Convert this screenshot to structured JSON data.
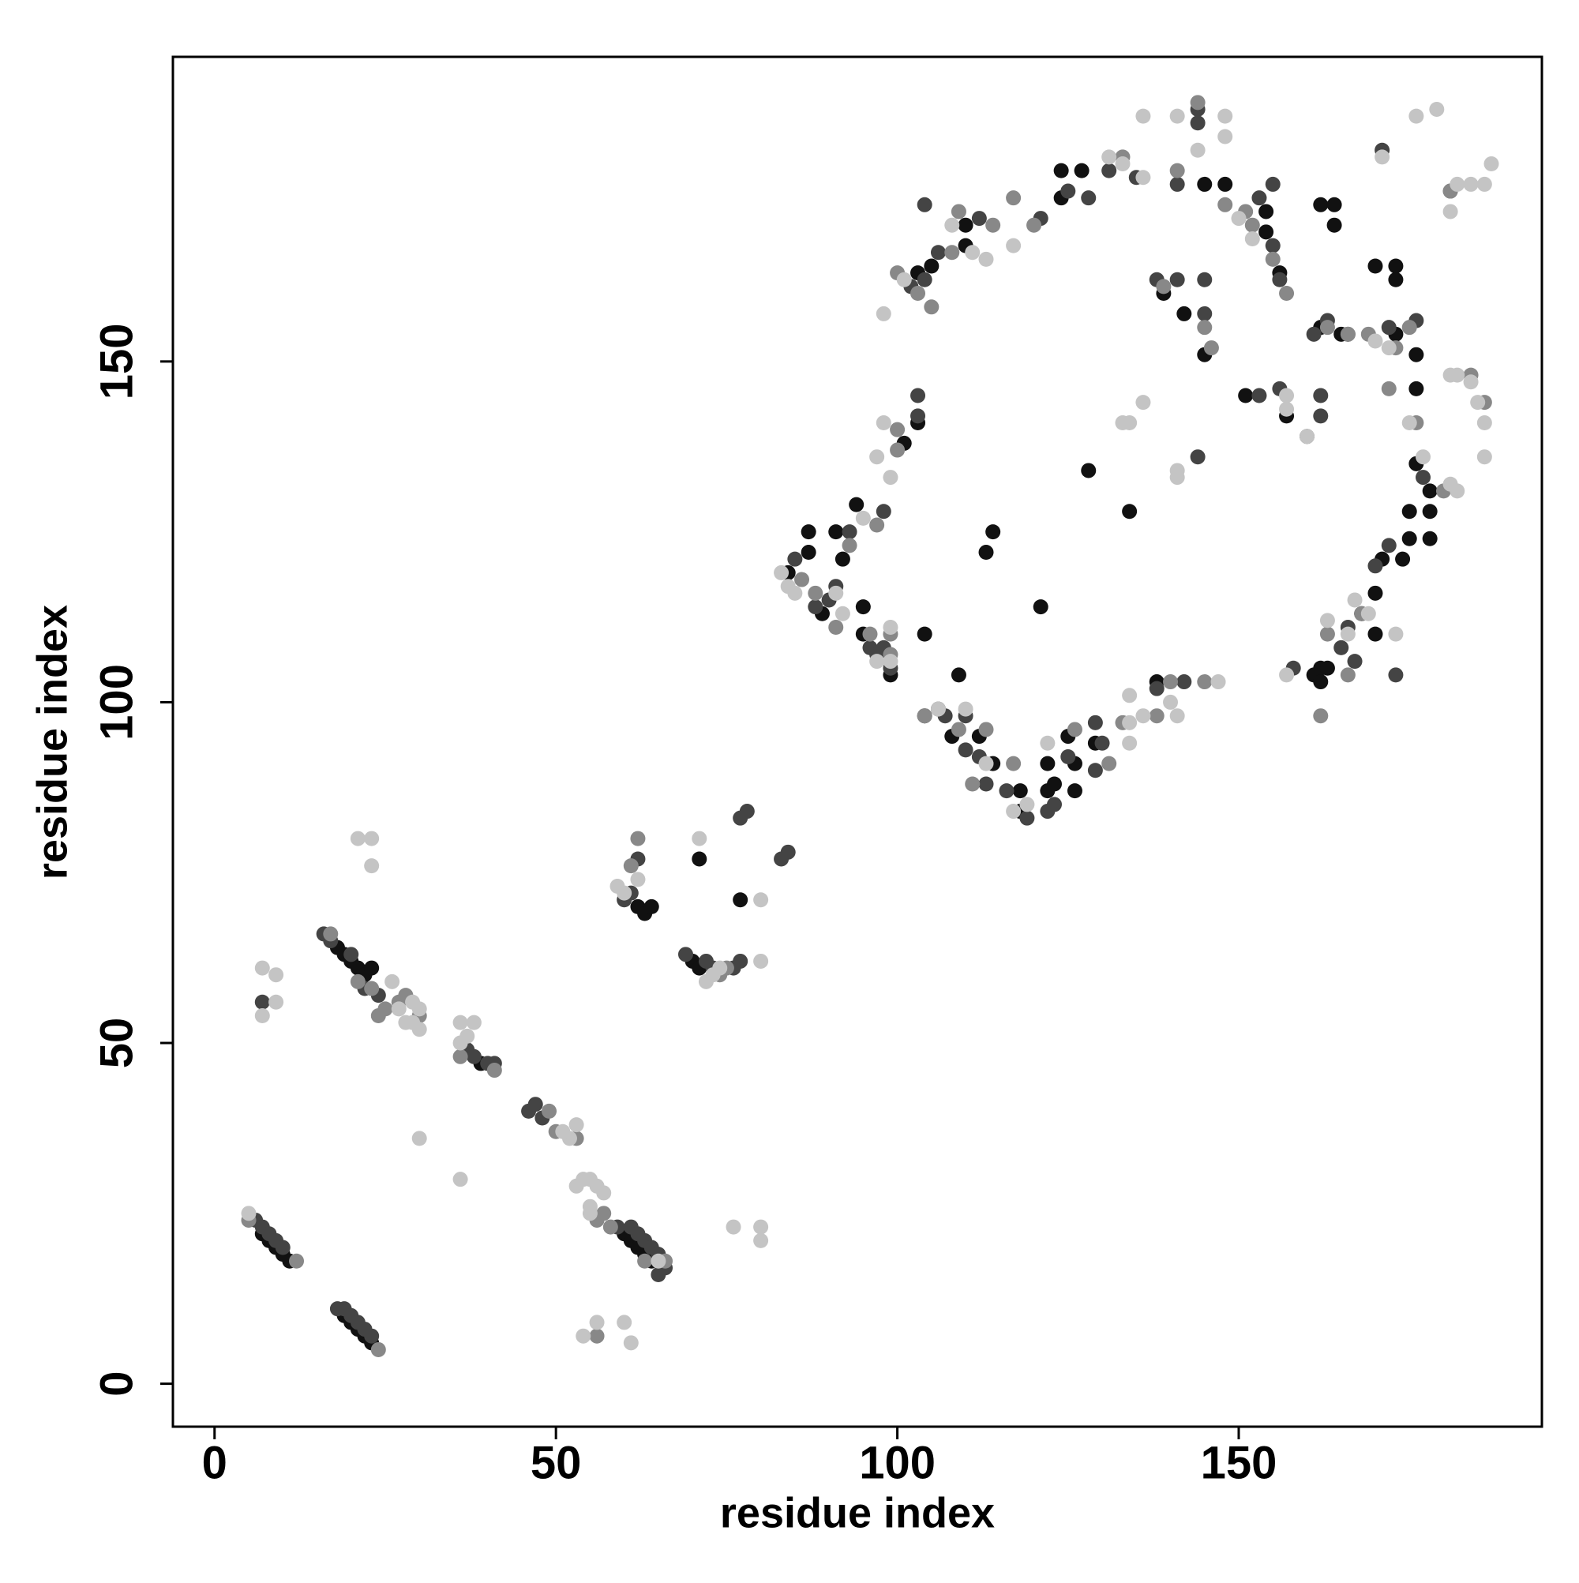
{
  "chart_data": {
    "type": "scatter",
    "x_label": "residue index",
    "y_label": "residue index",
    "xlim": [
      -6.1,
      194.4
    ],
    "ylim": [
      -6.3,
      194.7
    ],
    "xticks": [
      0,
      50,
      100,
      150
    ],
    "yticks": [
      0,
      50,
      100,
      150
    ],
    "grid": false,
    "series": [
      {
        "color": "#111111",
        "x": [
          7,
          8,
          9,
          10,
          11,
          19,
          20,
          21,
          22,
          23,
          18,
          19,
          20,
          21,
          22,
          23,
          60,
          61,
          62,
          63,
          64,
          39,
          62,
          63,
          64,
          71,
          77,
          70,
          71,
          84,
          87,
          87,
          92,
          91,
          94,
          89,
          95,
          95,
          99,
          104,
          109,
          104,
          108,
          112,
          114,
          118,
          118,
          122,
          122,
          123,
          125,
          126,
          126,
          129,
          128,
          134,
          121,
          113,
          114,
          103,
          105,
          110,
          110,
          124,
          124,
          127,
          145,
          148,
          154,
          154,
          156,
          162,
          164,
          164,
          170,
          173,
          173,
          139,
          142,
          145,
          151,
          157,
          162,
          165,
          173,
          176,
          176,
          176,
          178,
          178,
          178,
          175,
          175,
          171,
          174,
          170,
          168,
          170,
          162,
          161,
          163,
          162,
          138,
          101,
          103
        ],
        "y": [
          22,
          21,
          20,
          19,
          18,
          10,
          9,
          8,
          7,
          6,
          64,
          63,
          62,
          61,
          60,
          61,
          22,
          21,
          20,
          19,
          18,
          47,
          70,
          69,
          70,
          77,
          71,
          62,
          61,
          119,
          125,
          122,
          121,
          125,
          129,
          113,
          114,
          110,
          104,
          110,
          104,
          98,
          95,
          95,
          91,
          87,
          84,
          91,
          87,
          88,
          95,
          91,
          87,
          94,
          134,
          128,
          114,
          122,
          125,
          163,
          164,
          170,
          167,
          178,
          174,
          178,
          176,
          176,
          172,
          169,
          163,
          173,
          173,
          170,
          164,
          164,
          162,
          160,
          157,
          151,
          145,
          142,
          155,
          154,
          154,
          151,
          146,
          135,
          131,
          128,
          124,
          128,
          124,
          121,
          121,
          116,
          113,
          110,
          105,
          104,
          105,
          103,
          103,
          138,
          141
        ]
      },
      {
        "color": "#444444",
        "x": [
          6,
          7,
          8,
          9,
          10,
          18,
          19,
          20,
          21,
          22,
          23,
          16,
          17,
          20,
          22,
          24,
          7,
          37,
          38,
          40,
          41,
          46,
          47,
          48,
          59,
          61,
          62,
          63,
          64,
          65,
          66,
          65,
          61,
          62,
          60,
          69,
          72,
          73,
          77,
          76,
          77,
          78,
          83,
          84,
          85,
          88,
          90,
          91,
          93,
          96,
          97,
          98,
          99,
          98,
          103,
          103,
          106,
          107,
          110,
          110,
          113,
          116,
          119,
          122,
          125,
          129,
          129,
          123,
          104,
          106,
          102,
          104,
          112,
          121,
          125,
          128,
          131,
          135,
          141,
          144,
          144,
          153,
          155,
          155,
          156,
          161,
          163,
          166,
          172,
          171,
          181,
          138,
          141,
          145,
          145,
          144,
          153,
          156,
          160,
          162,
          162,
          177,
          176,
          170,
          172,
          165,
          167,
          166,
          158,
          173,
          142,
          138,
          130,
          112
        ],
        "y": [
          24,
          23,
          22,
          21,
          20,
          11,
          11,
          10,
          9,
          8,
          7,
          66,
          65,
          63,
          58,
          57,
          56,
          49,
          48,
          47,
          47,
          40,
          41,
          39,
          23,
          23,
          22,
          21,
          20,
          19,
          17,
          16,
          72,
          77,
          71,
          63,
          62,
          61,
          62,
          61,
          83,
          84,
          77,
          78,
          121,
          114,
          115,
          117,
          125,
          108,
          107,
          108,
          105,
          128,
          142,
          145,
          99,
          98,
          98,
          93,
          88,
          87,
          83,
          84,
          92,
          97,
          90,
          85,
          162,
          166,
          161,
          173,
          171,
          171,
          175,
          174,
          178,
          177,
          176,
          187,
          185,
          174,
          176,
          167,
          162,
          154,
          156,
          154,
          155,
          181,
          175,
          162,
          162,
          162,
          157,
          136,
          145,
          146,
          139,
          142,
          145,
          133,
          156,
          120,
          123,
          108,
          106,
          111,
          105,
          104,
          103,
          102,
          94,
          92
        ]
      },
      {
        "color": "#888888",
        "x": [
          5,
          12,
          24,
          17,
          23,
          25,
          27,
          24,
          21,
          28,
          30,
          36,
          41,
          49,
          50,
          53,
          56,
          57,
          58,
          63,
          66,
          62,
          61,
          56,
          74,
          75,
          86,
          88,
          91,
          93,
          96,
          97,
          99,
          99,
          100,
          100,
          100,
          103,
          105,
          108,
          109,
          114,
          117,
          120,
          133,
          141,
          144,
          148,
          151,
          152,
          155,
          157,
          163,
          166,
          169,
          173,
          175,
          176,
          180,
          181,
          184,
          186,
          172,
          163,
          166,
          168,
          162,
          140,
          145,
          138,
          133,
          131,
          126,
          117,
          111,
          104,
          113,
          109,
          139,
          145,
          146
        ],
        "y": [
          24,
          18,
          5,
          66,
          58,
          55,
          56,
          54,
          59,
          57,
          54,
          48,
          46,
          40,
          37,
          36,
          24,
          25,
          23,
          18,
          18,
          80,
          76,
          7,
          60,
          61,
          118,
          116,
          111,
          123,
          110,
          126,
          110,
          107,
          140,
          137,
          163,
          160,
          158,
          166,
          172,
          170,
          174,
          170,
          180,
          178,
          188,
          173,
          172,
          170,
          165,
          160,
          155,
          154,
          154,
          152,
          155,
          141,
          131,
          175,
          148,
          144,
          146,
          110,
          104,
          113,
          98,
          103,
          103,
          98,
          97,
          91,
          96,
          91,
          88,
          98,
          96,
          96,
          161,
          155,
          152
        ]
      },
      {
        "color": "#c4c4c4",
        "x": [
          5,
          7,
          7,
          9,
          9,
          21,
          23,
          23,
          26,
          27,
          29,
          28,
          30,
          30,
          29,
          36,
          38,
          37,
          36,
          52,
          53,
          51,
          54,
          55,
          56,
          53,
          55,
          57,
          55,
          65,
          59,
          60,
          62,
          30,
          36,
          54,
          56,
          60,
          61,
          71,
          80,
          73,
          72,
          74,
          76,
          80,
          80,
          80,
          84,
          83,
          85,
          91,
          92,
          99,
          97,
          99,
          97,
          98,
          99,
          95,
          98,
          101,
          108,
          111,
          113,
          117,
          131,
          133,
          136,
          136,
          141,
          148,
          148,
          144,
          150,
          152,
          171,
          176,
          179,
          181,
          182,
          184,
          186,
          187,
          181,
          182,
          184,
          185,
          186,
          186,
          181,
          182,
          177,
          175,
          172,
          170,
          157,
          157,
          160,
          163,
          167,
          169,
          173,
          157,
          166,
          134,
          134,
          136,
          141,
          140,
          134,
          119,
          122,
          117,
          110,
          106,
          113,
          133,
          134,
          136,
          141,
          141,
          147
        ],
        "y": [
          25,
          61,
          54,
          60,
          56,
          80,
          80,
          76,
          59,
          55,
          56,
          53,
          52,
          55,
          53,
          53,
          53,
          51,
          50,
          36,
          38,
          37,
          30,
          30,
          29,
          29,
          26,
          28,
          25,
          18,
          73,
          72,
          74,
          36,
          30,
          7,
          9,
          9,
          6,
          80,
          71,
          60,
          59,
          61,
          23,
          23,
          21,
          62,
          117,
          119,
          116,
          116,
          113,
          111,
          106,
          106,
          136,
          141,
          133,
          127,
          157,
          162,
          170,
          166,
          165,
          167,
          180,
          179,
          177,
          186,
          186,
          186,
          183,
          181,
          171,
          168,
          180,
          186,
          187,
          172,
          176,
          176,
          176,
          179,
          148,
          148,
          147,
          144,
          141,
          136,
          132,
          131,
          136,
          141,
          152,
          153,
          145,
          143,
          139,
          112,
          115,
          113,
          110,
          104,
          110,
          101,
          97,
          98,
          98,
          100,
          94,
          85,
          94,
          84,
          99,
          99,
          91,
          141,
          141,
          144,
          133,
          134,
          103
        ]
      }
    ]
  }
}
